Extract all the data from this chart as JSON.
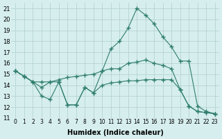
{
  "xlabel": "Humidex (Indice chaleur)",
  "xlim": [
    -0.5,
    23.5
  ],
  "ylim": [
    11,
    21.5
  ],
  "yticks": [
    11,
    12,
    13,
    14,
    15,
    16,
    17,
    18,
    19,
    20,
    21
  ],
  "xticks": [
    0,
    1,
    2,
    3,
    4,
    5,
    6,
    7,
    8,
    9,
    10,
    11,
    12,
    13,
    14,
    15,
    16,
    17,
    18,
    19,
    20,
    21,
    22,
    23
  ],
  "xtick_labels": [
    "0",
    "1",
    "2",
    "3",
    "4",
    "5",
    "6",
    "7",
    "8",
    "9",
    "10",
    "11",
    "12",
    "13",
    "14",
    "15",
    "16",
    "17",
    "18",
    "19",
    "20",
    "21",
    "22",
    "23"
  ],
  "bg_color": "#d6eeee",
  "line_color": "#2e7d6e",
  "grid_color": "#b0cece",
  "line1": [
    [
      0,
      15.3
    ],
    [
      1,
      14.8
    ],
    [
      2,
      14.3
    ],
    [
      3,
      13.8
    ],
    [
      4,
      14.3
    ],
    [
      5,
      14.3
    ],
    [
      6,
      12.2
    ],
    [
      7,
      12.2
    ],
    [
      8,
      13.8
    ],
    [
      9,
      13.3
    ],
    [
      10,
      15.3
    ],
    [
      11,
      15.5
    ],
    [
      12,
      15.5
    ],
    [
      13,
      16.0
    ],
    [
      14,
      16.1
    ],
    [
      15,
      16.3
    ],
    [
      16,
      16.0
    ],
    [
      17,
      15.8
    ],
    [
      18,
      15.5
    ],
    [
      19,
      13.6
    ],
    [
      20,
      12.1
    ],
    [
      21,
      11.6
    ],
    [
      22,
      11.5
    ],
    [
      23,
      11.4
    ]
  ],
  "line2": [
    [
      0,
      15.3
    ],
    [
      1,
      14.8
    ],
    [
      2,
      14.3
    ],
    [
      3,
      14.3
    ],
    [
      4,
      14.3
    ],
    [
      5,
      14.5
    ],
    [
      6,
      14.7
    ],
    [
      7,
      14.8
    ],
    [
      8,
      14.9
    ],
    [
      9,
      15.0
    ],
    [
      10,
      15.3
    ],
    [
      11,
      17.3
    ],
    [
      12,
      18.0
    ],
    [
      13,
      19.2
    ],
    [
      14,
      21.0
    ],
    [
      15,
      20.4
    ],
    [
      16,
      19.6
    ],
    [
      17,
      18.4
    ],
    [
      18,
      17.5
    ],
    [
      19,
      16.2
    ],
    [
      20,
      16.2
    ],
    [
      21,
      12.1
    ],
    [
      22,
      11.6
    ],
    [
      23,
      11.4
    ]
  ],
  "line3": [
    [
      0,
      15.3
    ],
    [
      1,
      14.8
    ],
    [
      2,
      14.3
    ],
    [
      3,
      13.0
    ],
    [
      4,
      12.7
    ],
    [
      5,
      14.3
    ],
    [
      6,
      12.2
    ],
    [
      7,
      12.2
    ],
    [
      8,
      13.8
    ],
    [
      9,
      13.3
    ],
    [
      10,
      14.0
    ],
    [
      11,
      14.2
    ],
    [
      12,
      14.3
    ],
    [
      13,
      14.4
    ],
    [
      14,
      14.4
    ],
    [
      15,
      14.5
    ],
    [
      16,
      14.5
    ],
    [
      17,
      14.5
    ],
    [
      18,
      14.5
    ],
    [
      19,
      13.6
    ],
    [
      20,
      12.1
    ],
    [
      21,
      11.6
    ],
    [
      22,
      11.5
    ],
    [
      23,
      11.4
    ]
  ]
}
